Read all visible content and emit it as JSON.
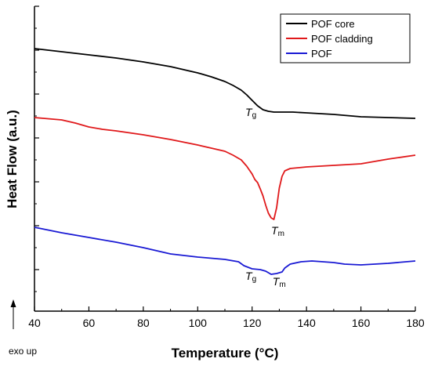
{
  "chart_data": {
    "type": "line",
    "xlabel": "Temperature (°C)",
    "ylabel": "Heat Flow (a.u.)",
    "xlim": [
      40,
      180
    ],
    "x_ticks": [
      40,
      60,
      80,
      100,
      120,
      140,
      160,
      180
    ],
    "y_tick_labels": "none",
    "grid": false,
    "legend_position": "top-right",
    "direction_note": "exo up",
    "series": [
      {
        "name": "POF core",
        "color": "#000000",
        "points": [
          [
            40,
            62
          ],
          [
            50,
            66
          ],
          [
            60,
            70
          ],
          [
            70,
            74
          ],
          [
            80,
            79
          ],
          [
            90,
            85
          ],
          [
            100,
            93
          ],
          [
            105,
            98
          ],
          [
            110,
            104
          ],
          [
            113,
            109
          ],
          [
            116,
            115
          ],
          [
            118,
            121
          ],
          [
            120,
            128
          ],
          [
            122,
            135
          ],
          [
            124,
            140
          ],
          [
            126,
            142
          ],
          [
            128,
            143
          ],
          [
            130,
            143
          ],
          [
            135,
            143
          ],
          [
            140,
            144
          ],
          [
            150,
            146
          ],
          [
            160,
            149
          ],
          [
            170,
            150
          ],
          [
            180,
            151
          ]
        ]
      },
      {
        "name": "POF cladding",
        "color": "#e0191b",
        "points": [
          [
            40,
            150
          ],
          [
            50,
            153
          ],
          [
            55,
            157
          ],
          [
            60,
            162
          ],
          [
            65,
            165
          ],
          [
            70,
            167
          ],
          [
            80,
            172
          ],
          [
            90,
            178
          ],
          [
            100,
            185
          ],
          [
            105,
            189
          ],
          [
            110,
            193
          ],
          [
            113,
            198
          ],
          [
            116,
            204
          ],
          [
            118,
            212
          ],
          [
            120,
            222
          ],
          [
            121,
            229
          ],
          [
            122,
            233
          ],
          [
            123,
            241
          ],
          [
            124,
            250
          ],
          [
            125,
            262
          ],
          [
            126,
            272
          ],
          [
            127,
            278
          ],
          [
            128,
            280
          ],
          [
            129,
            265
          ],
          [
            130,
            240
          ],
          [
            131,
            225
          ],
          [
            132,
            218
          ],
          [
            134,
            215
          ],
          [
            140,
            213
          ],
          [
            150,
            211
          ],
          [
            160,
            209
          ],
          [
            170,
            203
          ],
          [
            180,
            198
          ]
        ]
      },
      {
        "name": "POF",
        "color": "#1a1ad4",
        "points": [
          [
            40,
            290
          ],
          [
            50,
            297
          ],
          [
            60,
            303
          ],
          [
            70,
            309
          ],
          [
            80,
            316
          ],
          [
            90,
            324
          ],
          [
            100,
            328
          ],
          [
            110,
            331
          ],
          [
            115,
            334
          ],
          [
            117,
            339
          ],
          [
            120,
            343
          ],
          [
            123,
            344
          ],
          [
            125,
            346
          ],
          [
            127,
            350
          ],
          [
            129,
            349
          ],
          [
            131,
            347
          ],
          [
            132,
            342
          ],
          [
            134,
            337
          ],
          [
            138,
            334
          ],
          [
            142,
            333
          ],
          [
            146,
            334
          ],
          [
            150,
            335
          ],
          [
            154,
            337
          ],
          [
            160,
            338
          ],
          [
            170,
            336
          ],
          [
            180,
            333
          ]
        ]
      }
    ],
    "annotations": [
      {
        "main": "T",
        "sub": "g",
        "x": 117.5,
        "y": 148
      },
      {
        "main": "T",
        "sub": "m",
        "x": 127,
        "y": 299
      },
      {
        "main": "T",
        "sub": "g",
        "x": 117.5,
        "y": 357
      },
      {
        "main": "T",
        "sub": "m",
        "x": 127.5,
        "y": 364
      }
    ]
  }
}
